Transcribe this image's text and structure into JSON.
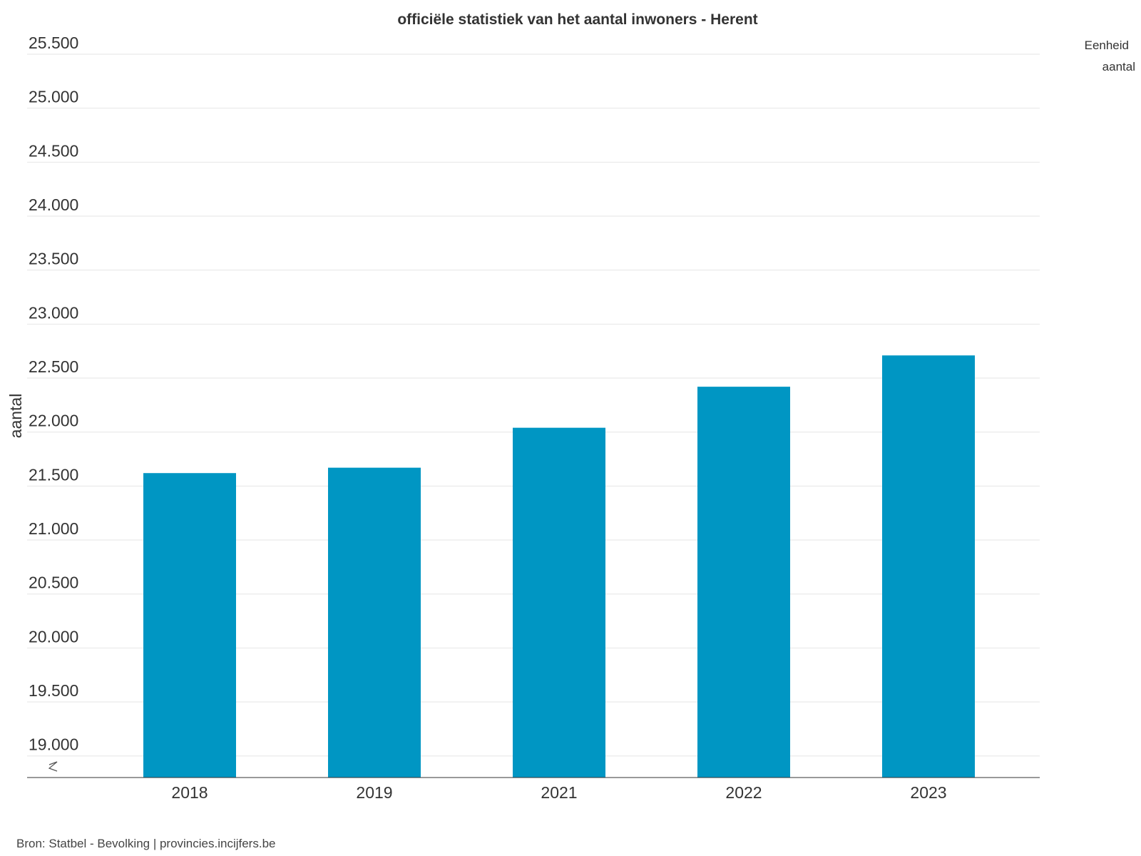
{
  "chart_data": {
    "type": "bar",
    "title": "officiële statistiek van het aantal inwoners - Herent",
    "xlabel": "",
    "ylabel": "aantal",
    "categories": [
      "2018",
      "2019",
      "2021",
      "2022",
      "2023"
    ],
    "values": [
      21620,
      21670,
      22040,
      22420,
      22710
    ],
    "ylim": [
      18800,
      25500
    ],
    "yticks": [
      19000,
      19500,
      20000,
      20500,
      21000,
      21500,
      22000,
      22500,
      23000,
      23500,
      24000,
      24500,
      25000,
      25500
    ],
    "ytick_labels": [
      "19.000",
      "19.500",
      "20.000",
      "20.500",
      "21.000",
      "21.500",
      "22.000",
      "22.500",
      "23.000",
      "23.500",
      "24.000",
      "24.500",
      "25.000",
      "25.500"
    ],
    "axis_break": true,
    "grid": true,
    "bar_color": "#0096c3",
    "legend": {
      "placement": "top-right",
      "header": "Eenheid",
      "entries": [
        "aantal"
      ]
    }
  },
  "source": "Bron: Statbel - Bevolking | provincies.incijfers.be"
}
